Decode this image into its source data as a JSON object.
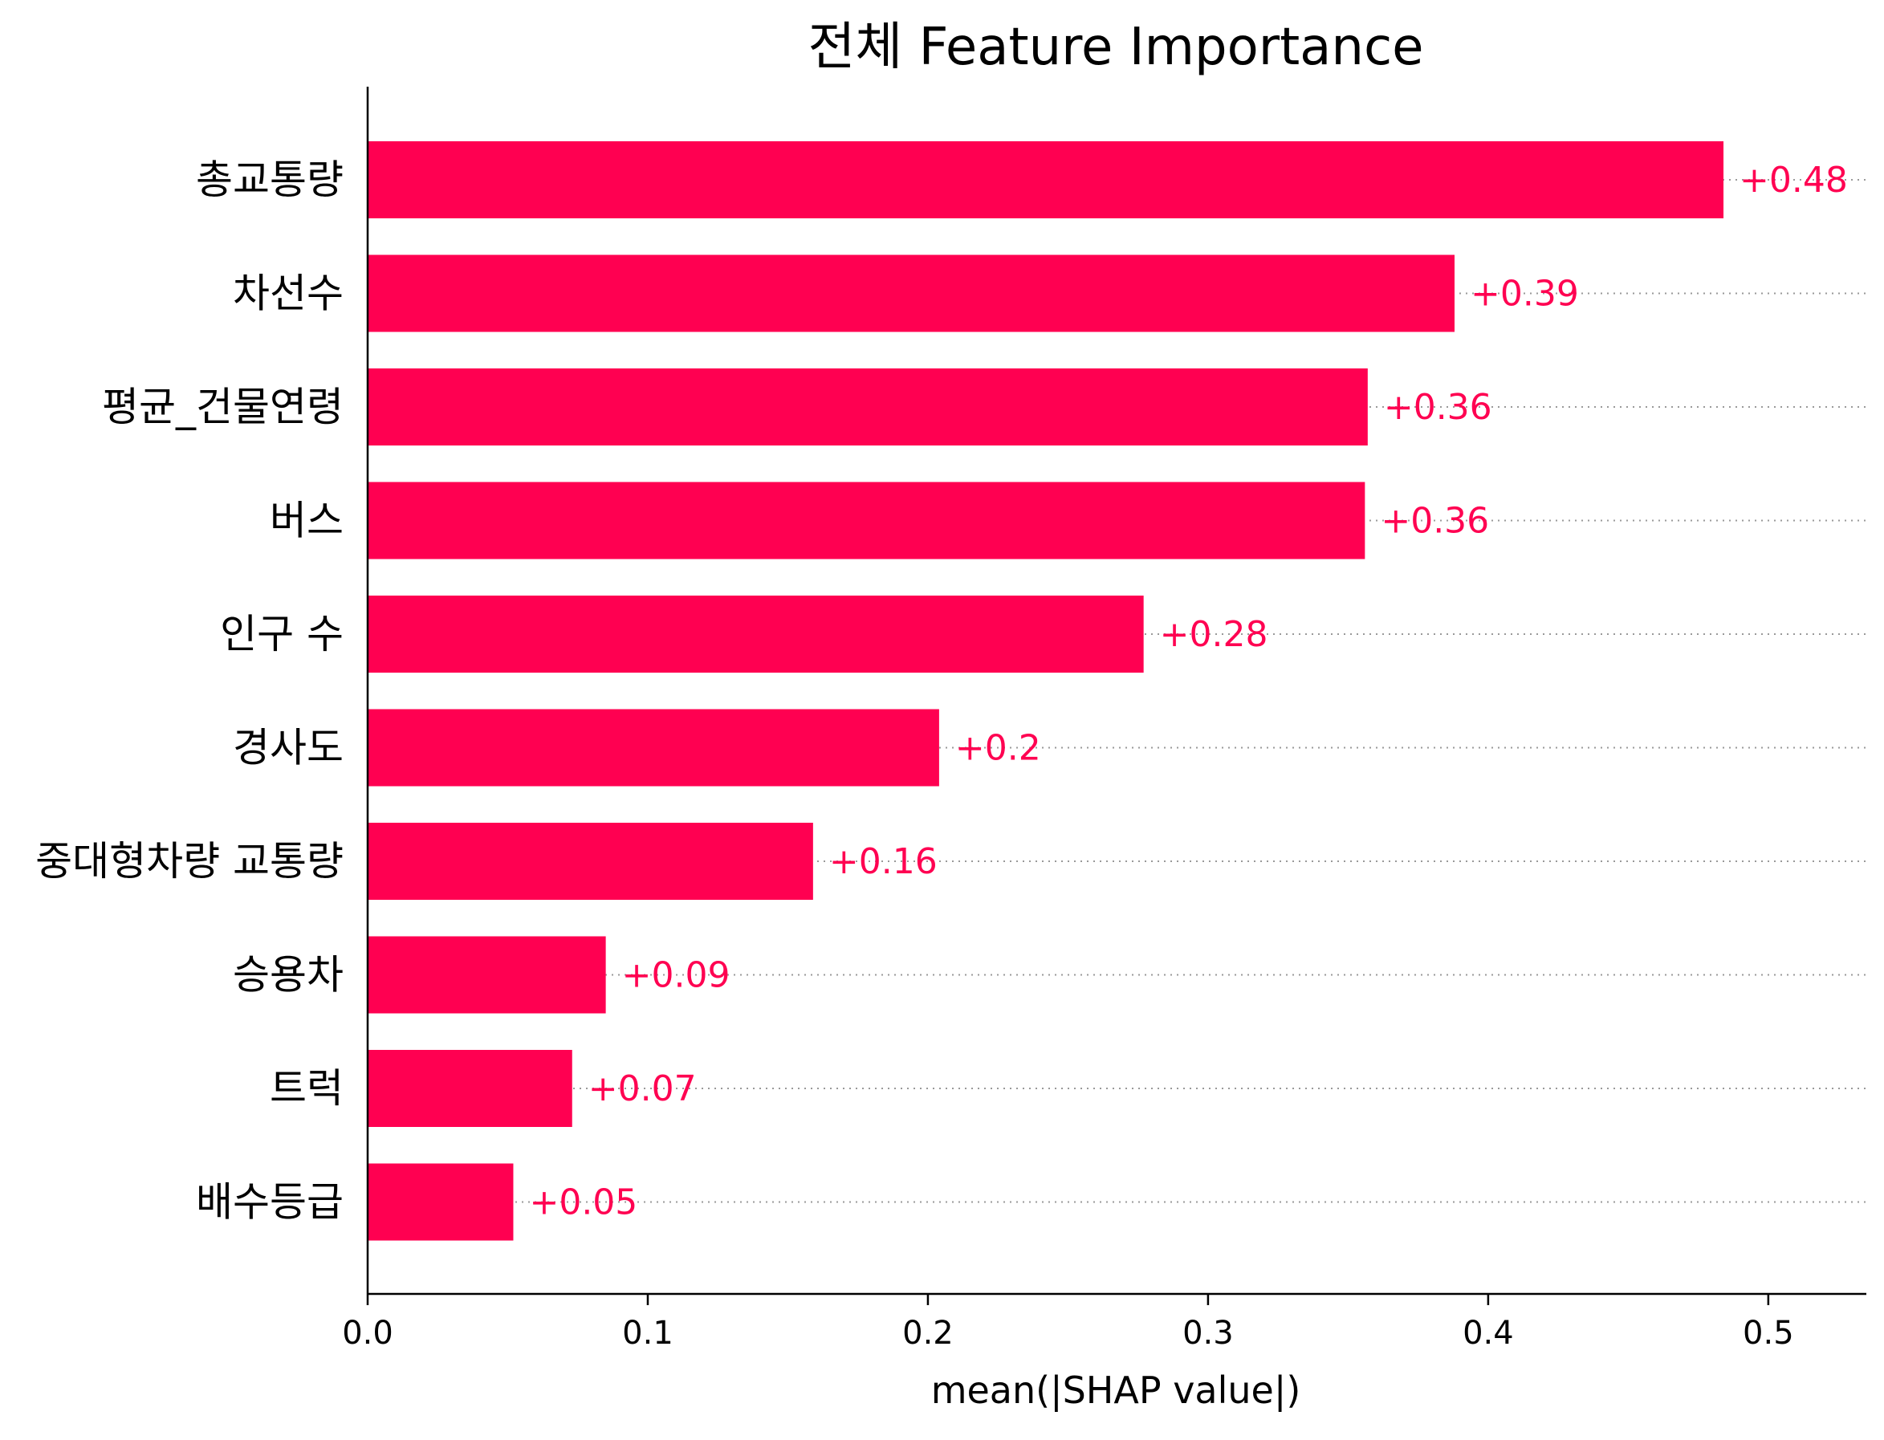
{
  "chart_data": {
    "type": "bar",
    "orientation": "horizontal",
    "title": "전체 Feature Importance",
    "xlabel": "mean(|SHAP value|)",
    "ylabel": "",
    "xlim": [
      0,
      0.535
    ],
    "xticks": [
      0.0,
      0.1,
      0.2,
      0.3,
      0.4,
      0.5
    ],
    "xtick_labels": [
      "0.0",
      "0.1",
      "0.2",
      "0.3",
      "0.4",
      "0.5"
    ],
    "grid": false,
    "bar_color": "#ff0051",
    "label_color": "#ff0051",
    "categories": [
      "총교통량",
      "차선수",
      "평균_건물연령",
      "버스",
      "인구 수",
      "경사도",
      "중대형차량 교통량",
      "승용차",
      "트럭",
      "배수등급"
    ],
    "values": [
      0.484,
      0.388,
      0.357,
      0.356,
      0.277,
      0.204,
      0.159,
      0.085,
      0.073,
      0.052
    ],
    "value_labels": [
      "+0.48",
      "+0.39",
      "+0.36",
      "+0.36",
      "+0.28",
      "+0.2",
      "+0.16",
      "+0.09",
      "+0.07",
      "+0.05"
    ]
  }
}
